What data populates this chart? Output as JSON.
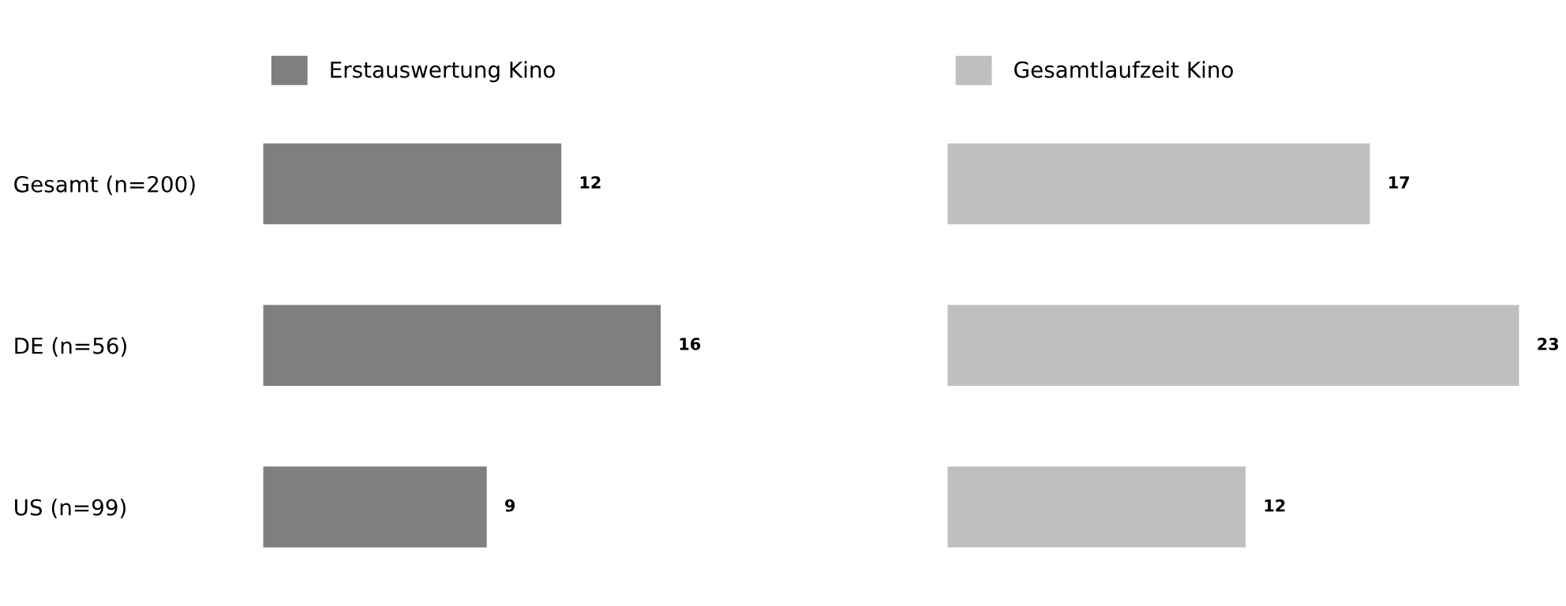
{
  "chart_data": [
    {
      "type": "bar",
      "orientation": "horizontal",
      "categories": [
        "Gesamt (n=200)",
        "DE (n=56)",
        "US (n=99)"
      ],
      "series": [
        {
          "name": "Erstauswertung Kino",
          "color": "#7f7f7f",
          "values": [
            12,
            16,
            9
          ]
        }
      ],
      "data_labels": true,
      "legend": "top",
      "grid": false,
      "tick_labels": "y"
    },
    {
      "type": "bar",
      "orientation": "horizontal",
      "categories": [
        null,
        null,
        null
      ],
      "series": [
        {
          "name": "Gesamtlaufzeit Kino",
          "color": "#bfbfbf",
          "values": [
            17,
            23,
            12
          ]
        }
      ],
      "data_labels": true,
      "legend": "top",
      "grid": false
    }
  ]
}
